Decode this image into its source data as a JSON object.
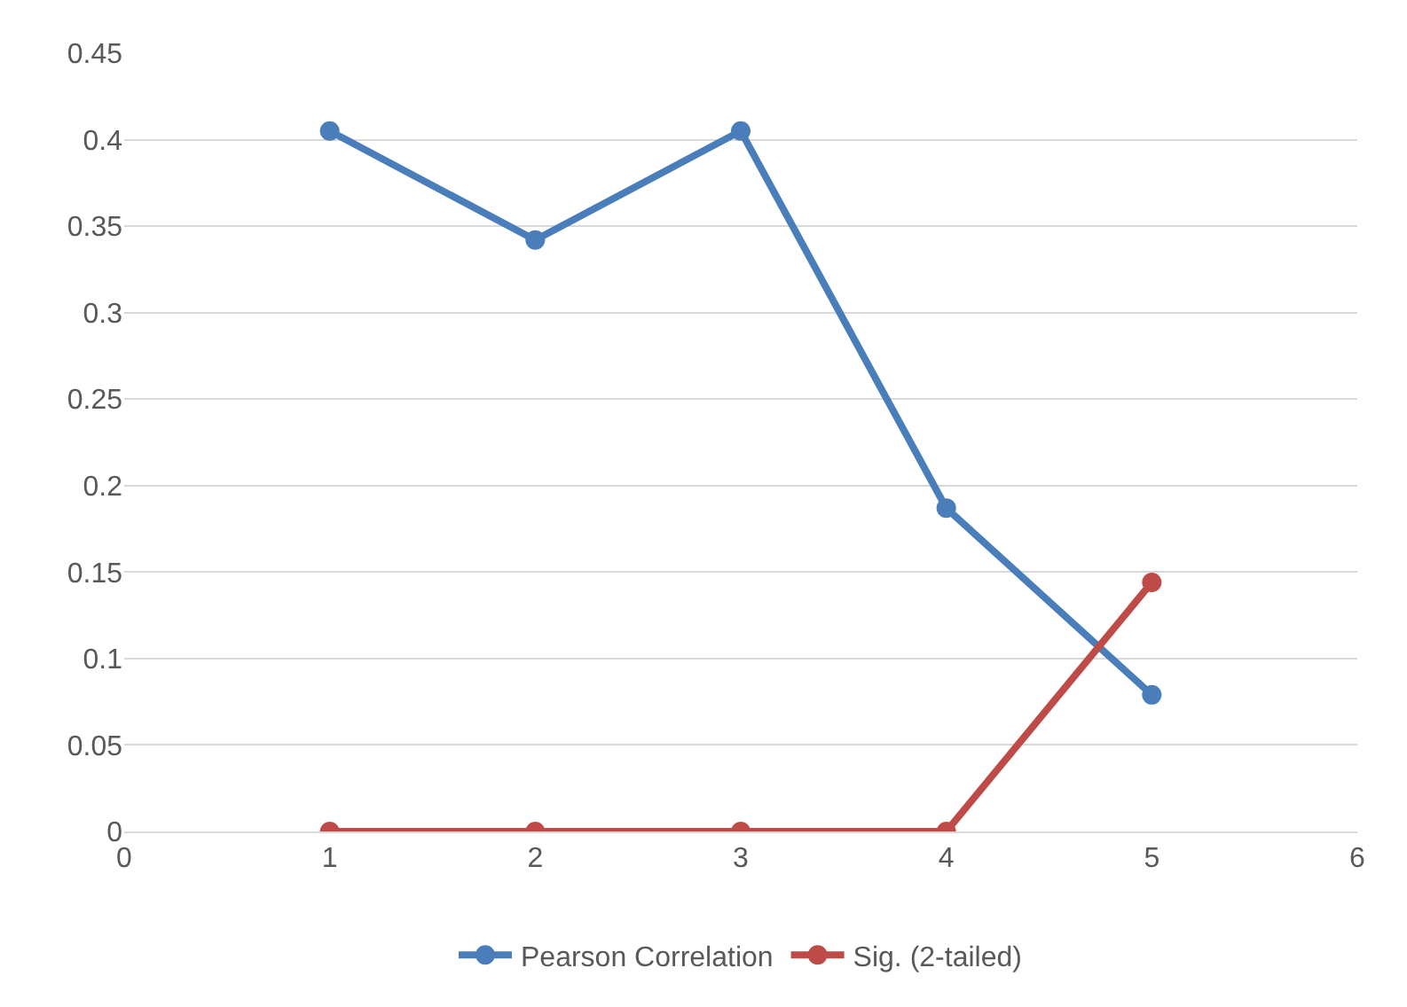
{
  "chart_data": {
    "type": "line",
    "x": [
      1,
      2,
      3,
      4,
      5
    ],
    "series": [
      {
        "name": "Pearson Correlation",
        "color": "#4a7ebb",
        "values": [
          0.405,
          0.342,
          0.405,
          0.187,
          0.079
        ]
      },
      {
        "name": "Sig. (2-tailed)",
        "color": "#be4b48",
        "values": [
          0,
          0,
          0,
          0,
          0.144
        ]
      }
    ],
    "xlim": [
      0,
      6
    ],
    "xticks": [
      0,
      1,
      2,
      3,
      4,
      5,
      6
    ],
    "ylim": [
      0,
      0.45
    ],
    "yticks": [
      0,
      0.05,
      0.1,
      0.15,
      0.2,
      0.25,
      0.3,
      0.35,
      0.4,
      0.45
    ],
    "grid": "y",
    "legend": "bottom",
    "marker": "circle",
    "line_style": "solid"
  }
}
